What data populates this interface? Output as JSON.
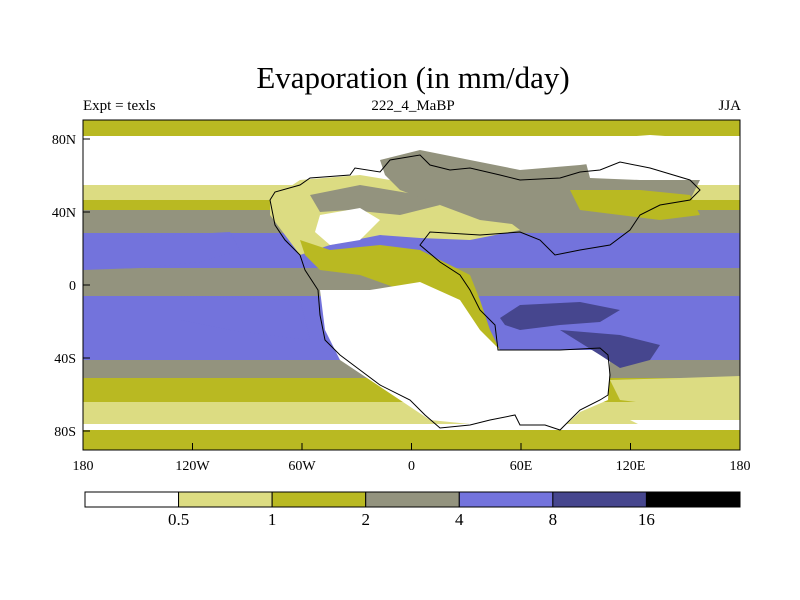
{
  "chart_data": {
    "type": "heatmap",
    "title": "Evaporation (in mm/day)",
    "left_subtitle": "Expt = texls",
    "center_subtitle": "222_4_MaBP",
    "right_subtitle": "JJA",
    "x_ticks": [
      "180",
      "120W",
      "60W",
      "0",
      "60E",
      "120E",
      "180"
    ],
    "y_ticks": [
      "80N",
      "40N",
      "0",
      "40S",
      "80S"
    ],
    "xlim": [
      -180,
      180
    ],
    "ylim": [
      -90,
      90
    ],
    "colorbar": {
      "levels": [
        "0.5",
        "1",
        "2",
        "4",
        "8",
        "16"
      ],
      "colors": [
        "#ffffff",
        "#dcdc82",
        "#b9b922",
        "#93937e",
        "#7373dc",
        "#46468e",
        "#000000"
      ]
    },
    "colors": {
      "ocean_mid": "#7373dc",
      "ocean_dark": "#46468e",
      "land_white": "#ffffff"
    }
  }
}
